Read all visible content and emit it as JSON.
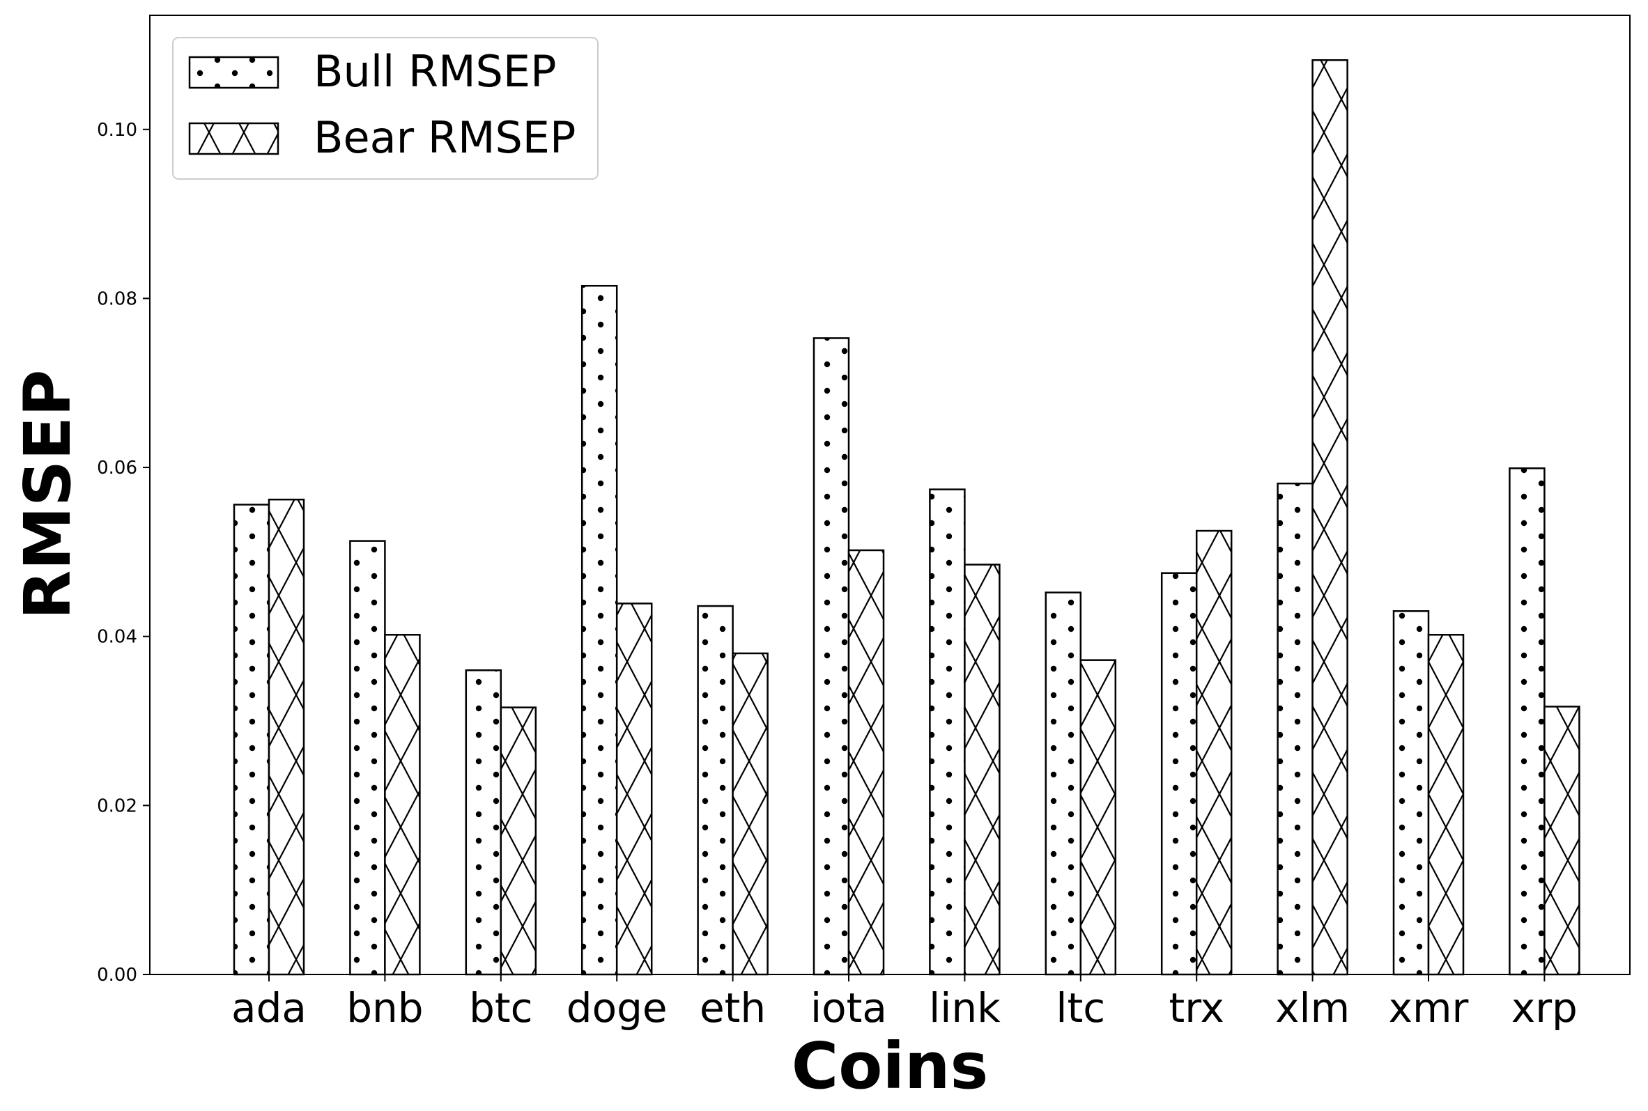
{
  "chart_data": {
    "type": "bar",
    "xlabel": "Coins",
    "ylabel": "RMSEP",
    "ylim": [
      0,
      0.1135
    ],
    "yticks": [
      "0.00",
      "0.02",
      "0.04",
      "0.06",
      "0.08",
      "0.10"
    ],
    "ytick_values": [
      0,
      0.02,
      0.04,
      0.06,
      0.08,
      0.1
    ],
    "categories": [
      "ada",
      "bnb",
      "btc",
      "doge",
      "eth",
      "iota",
      "link",
      "ltc",
      "trx",
      "xlm",
      "xmr",
      "xrp"
    ],
    "series": [
      {
        "name": "Bull RMSEP",
        "hatch": "dots",
        "values": [
          0.0556,
          0.0513,
          0.036,
          0.0815,
          0.0436,
          0.0753,
          0.0574,
          0.0452,
          0.0475,
          0.0581,
          0.043,
          0.0599
        ]
      },
      {
        "name": "Bear RMSEP",
        "hatch": "cross",
        "values": [
          0.0562,
          0.0402,
          0.0316,
          0.0439,
          0.038,
          0.0502,
          0.0485,
          0.0372,
          0.0525,
          0.1082,
          0.0402,
          0.0317
        ]
      }
    ],
    "grid": false,
    "legend_position": "top-left"
  }
}
